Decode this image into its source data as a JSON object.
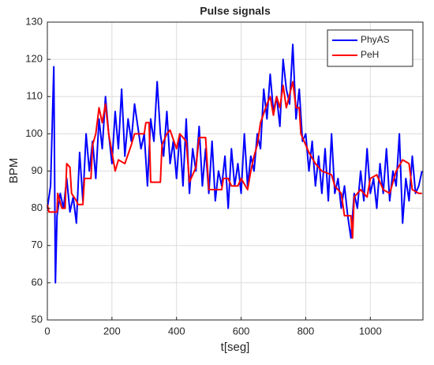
{
  "chart_data": {
    "type": "line",
    "title": "Pulse signals",
    "xlabel": "t[seg]",
    "ylabel": "BPM",
    "xlim": [
      0,
      1163
    ],
    "ylim": [
      50,
      130
    ],
    "xticks": [
      0,
      200,
      400,
      600,
      800,
      1000
    ],
    "yticks": [
      50,
      60,
      70,
      80,
      90,
      100,
      110,
      120,
      130
    ],
    "grid": true,
    "legend": "upper right",
    "series": [
      {
        "name": "PhyAS",
        "color": "#0000ff",
        "x": [
          0,
          10,
          20,
          25,
          30,
          40,
          50,
          60,
          70,
          80,
          90,
          100,
          110,
          120,
          130,
          140,
          150,
          160,
          170,
          180,
          190,
          200,
          210,
          220,
          230,
          240,
          250,
          260,
          270,
          280,
          290,
          300,
          310,
          320,
          330,
          340,
          350,
          360,
          370,
          380,
          390,
          400,
          410,
          420,
          430,
          440,
          450,
          460,
          470,
          480,
          490,
          500,
          510,
          520,
          530,
          540,
          550,
          560,
          570,
          580,
          590,
          600,
          610,
          620,
          630,
          640,
          650,
          660,
          670,
          680,
          690,
          700,
          710,
          720,
          730,
          740,
          750,
          760,
          770,
          780,
          790,
          800,
          810,
          820,
          830,
          840,
          850,
          860,
          870,
          880,
          890,
          900,
          910,
          920,
          930,
          940,
          950,
          960,
          970,
          980,
          990,
          1000,
          1010,
          1020,
          1030,
          1040,
          1050,
          1060,
          1070,
          1080,
          1090,
          1100,
          1110,
          1120,
          1130,
          1140,
          1150,
          1160
        ],
        "values": [
          80,
          86,
          118,
          60,
          78,
          84,
          80,
          88,
          79,
          83,
          76,
          95,
          82,
          100,
          90,
          98,
          88,
          104,
          96,
          110,
          100,
          92,
          106,
          96,
          112,
          94,
          104,
          98,
          108,
          102,
          96,
          100,
          86,
          104,
          98,
          114,
          100,
          94,
          106,
          92,
          98,
          88,
          100,
          86,
          104,
          84,
          96,
          90,
          102,
          86,
          96,
          84,
          98,
          82,
          90,
          86,
          94,
          80,
          96,
          86,
          92,
          84,
          100,
          86,
          94,
          90,
          100,
          96,
          112,
          104,
          116,
          106,
          110,
          102,
          120,
          112,
          108,
          124,
          104,
          112,
          98,
          100,
          90,
          98,
          86,
          94,
          84,
          96,
          82,
          100,
          84,
          88,
          80,
          86,
          78,
          72,
          84,
          80,
          90,
          82,
          96,
          84,
          88,
          80,
          92,
          84,
          96,
          82,
          90,
          86,
          100,
          76,
          88,
          82,
          94,
          84,
          86,
          90
        ]
      },
      {
        "name": "PeH",
        "color": "#ff0000",
        "x": [
          0,
          5,
          30,
          32,
          45,
          55,
          60,
          70,
          75,
          90,
          95,
          110,
          115,
          135,
          140,
          150,
          160,
          170,
          180,
          190,
          200,
          210,
          220,
          240,
          260,
          270,
          300,
          305,
          315,
          320,
          350,
          355,
          370,
          380,
          400,
          410,
          430,
          440,
          460,
          470,
          490,
          500,
          540,
          545,
          560,
          570,
          590,
          600,
          620,
          630,
          640,
          650,
          660,
          680,
          690,
          700,
          710,
          720,
          730,
          740,
          760,
          770,
          780,
          785,
          800,
          810,
          830,
          850,
          880,
          890,
          910,
          920,
          940,
          945,
          950,
          970,
          990,
          1000,
          1020,
          1040,
          1060,
          1080,
          1100,
          1120,
          1130,
          1150,
          1160
        ],
        "values": [
          81,
          79,
          79,
          84,
          80,
          80,
          92,
          91,
          84,
          82,
          81,
          81,
          88,
          88,
          97,
          100,
          107,
          103,
          108,
          100,
          95,
          90,
          93,
          92,
          97,
          100,
          100,
          103,
          103,
          87,
          87,
          97,
          100,
          101,
          96,
          100,
          98,
          87,
          91,
          99,
          99,
          85,
          85,
          88,
          88,
          86,
          86,
          88,
          85,
          90,
          94,
          97,
          103,
          108,
          110,
          105,
          110,
          107,
          113,
          107,
          114,
          107,
          107,
          100,
          97,
          95,
          92,
          90,
          89,
          86,
          84,
          78,
          78,
          72,
          83,
          85,
          83,
          88,
          89,
          85,
          84,
          90,
          93,
          92,
          85,
          84,
          84
        ]
      }
    ]
  }
}
